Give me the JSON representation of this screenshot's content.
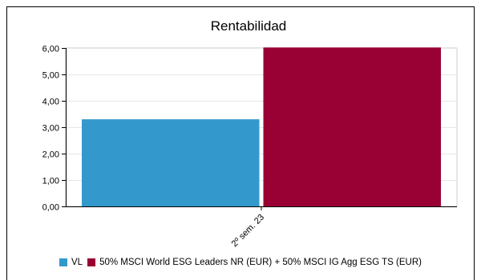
{
  "chart_data": {
    "type": "bar",
    "title": "Rentabilidad",
    "categories": [
      "2º sem. 23"
    ],
    "series": [
      {
        "name": "VL",
        "values": [
          3.3
        ],
        "color": "#3399cc"
      },
      {
        "name": "50% MSCI World ESG Leaders NR (EUR) + 50% MSCI IG Agg ESG TS (EUR)",
        "values": [
          6.02
        ],
        "color": "#990033"
      }
    ],
    "ylim": [
      0,
      6
    ],
    "yticks": [
      "0,00",
      "1,00",
      "2,00",
      "3,00",
      "4,00",
      "5,00",
      "6,00"
    ],
    "grid": true,
    "legend": "bottom"
  }
}
